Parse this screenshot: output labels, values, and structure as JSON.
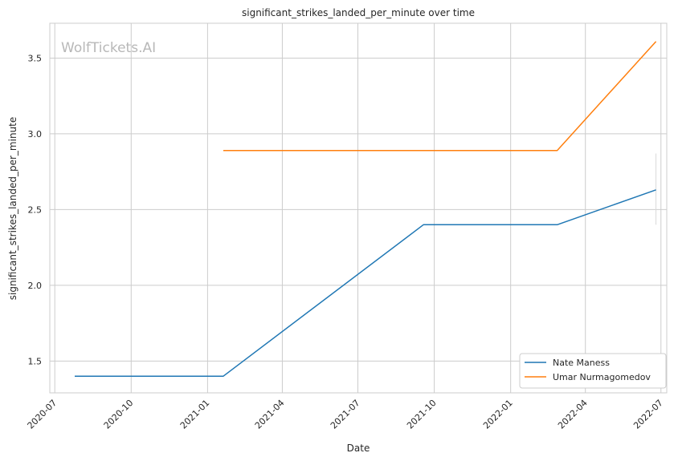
{
  "chart_data": {
    "type": "line",
    "title": "significant_strikes_landed_per_minute over time",
    "xlabel": "Date",
    "ylabel": "significant_strikes_landed_per_minute",
    "watermark": "WolfTickets.AI",
    "x_tick_labels": [
      "2020-07",
      "2020-10",
      "2021-01",
      "2021-04",
      "2021-07",
      "2021-10",
      "2022-01",
      "2022-04",
      "2022-07"
    ],
    "x_ticks": [
      "2020-07-01",
      "2020-10-01",
      "2021-01-01",
      "2021-04-01",
      "2021-07-01",
      "2021-10-01",
      "2022-01-01",
      "2022-04-01",
      "2022-07-01"
    ],
    "xlim": [
      "2020-06-25",
      "2022-07-08"
    ],
    "y_ticks": [
      1.5,
      2.0,
      2.5,
      3.0,
      3.5
    ],
    "y_tick_labels": [
      "1.5",
      "2.0",
      "2.5",
      "3.0",
      "3.5"
    ],
    "ylim": [
      1.29,
      3.73
    ],
    "grid": true,
    "legend_position": "lower-right",
    "series": [
      {
        "name": "Nate Maness",
        "color": "#1f77b4",
        "points": [
          {
            "x": "2020-07-25",
            "y": 1.4
          },
          {
            "x": "2021-01-20",
            "y": 1.4
          },
          {
            "x": "2021-09-18",
            "y": 2.4
          },
          {
            "x": "2022-02-26",
            "y": 2.4
          },
          {
            "x": "2022-06-25",
            "y": 2.63
          }
        ]
      },
      {
        "name": "Umar Nurmagomedov",
        "color": "#ff7f0e",
        "points": [
          {
            "x": "2021-01-20",
            "y": 2.89
          },
          {
            "x": "2022-02-26",
            "y": 2.89
          },
          {
            "x": "2022-06-25",
            "y": 3.61
          }
        ]
      }
    ],
    "error_bar": {
      "x": "2022-06-25",
      "low": 2.4,
      "high": 2.87
    }
  }
}
